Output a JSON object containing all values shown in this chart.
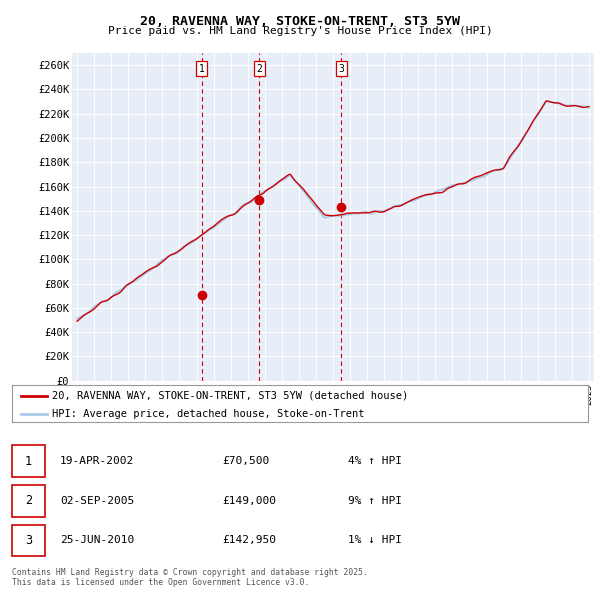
{
  "title": "20, RAVENNA WAY, STOKE-ON-TRENT, ST3 5YW",
  "subtitle": "Price paid vs. HM Land Registry's House Price Index (HPI)",
  "ylabel_ticks": [
    "£0",
    "£20K",
    "£40K",
    "£60K",
    "£80K",
    "£100K",
    "£120K",
    "£140K",
    "£160K",
    "£180K",
    "£200K",
    "£220K",
    "£240K",
    "£260K"
  ],
  "ytick_values": [
    0,
    20000,
    40000,
    60000,
    80000,
    100000,
    120000,
    140000,
    160000,
    180000,
    200000,
    220000,
    240000,
    260000
  ],
  "ylim": [
    0,
    270000
  ],
  "x_start_year": 1995,
  "x_end_year": 2025,
  "hpi_color": "#aac8e8",
  "price_color": "#cc0000",
  "vline_color": "#cc0000",
  "sale_dates": [
    2002.3,
    2005.67,
    2010.49
  ],
  "sale_prices": [
    70500,
    149000,
    142950
  ],
  "sale_labels": [
    "1",
    "2",
    "3"
  ],
  "legend_label_price": "20, RAVENNA WAY, STOKE-ON-TRENT, ST3 5YW (detached house)",
  "legend_label_hpi": "HPI: Average price, detached house, Stoke-on-Trent",
  "table_rows": [
    {
      "num": "1",
      "date": "19-APR-2002",
      "price": "£70,500",
      "pct": "4% ↑ HPI"
    },
    {
      "num": "2",
      "date": "02-SEP-2005",
      "price": "£149,000",
      "pct": "9% ↑ HPI"
    },
    {
      "num": "3",
      "date": "25-JUN-2010",
      "price": "£142,950",
      "pct": "1% ↓ HPI"
    }
  ],
  "footnote": "Contains HM Land Registry data © Crown copyright and database right 2025.\nThis data is licensed under the Open Government Licence v3.0.",
  "background_color": "#ffffff",
  "plot_bg_color": "#e8eef8"
}
